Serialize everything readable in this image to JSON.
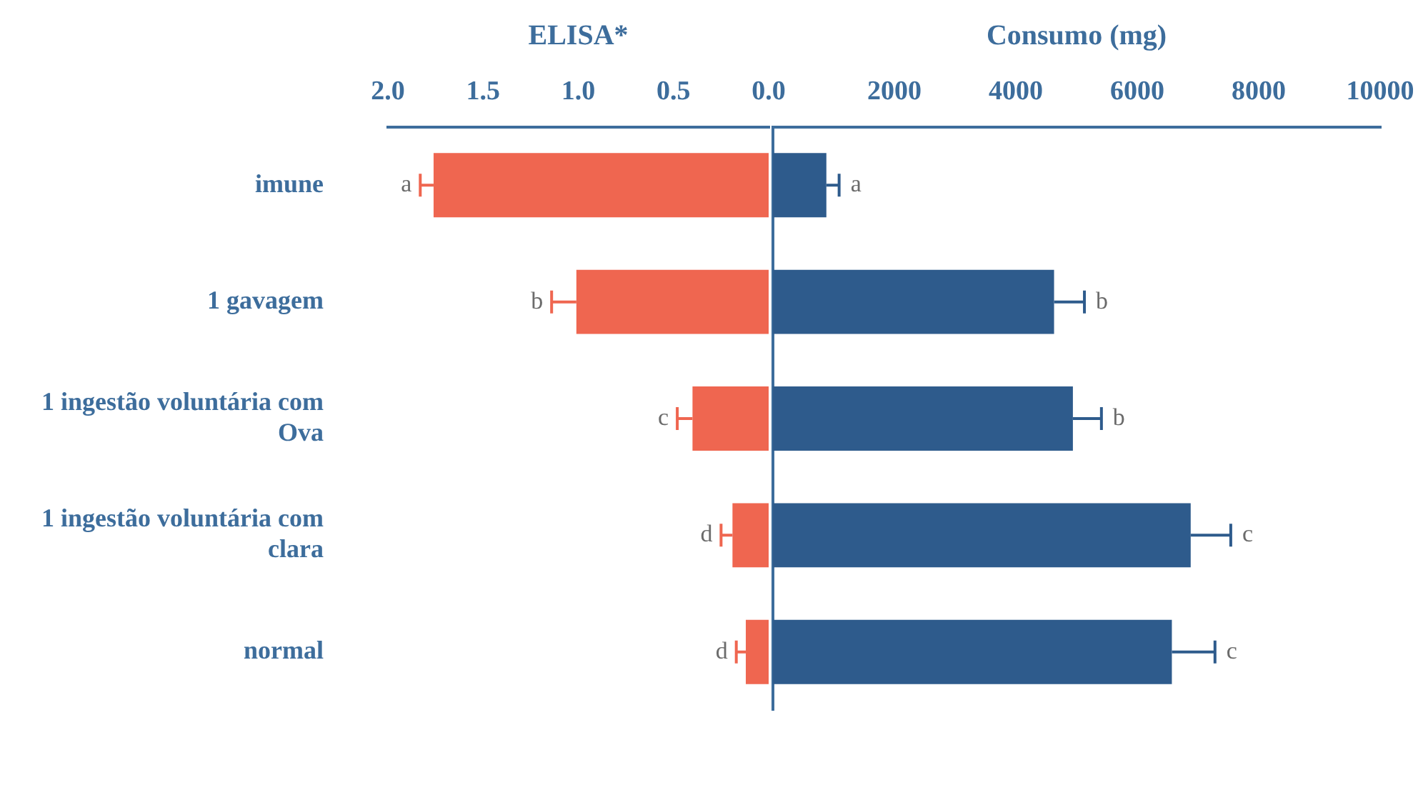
{
  "chart_data": [
    {
      "type": "bar",
      "orientation": "horizontal",
      "xlabel": "ELISA*",
      "categories": [
        "imune",
        "1 gavagem",
        "1 ingestão voluntária com Ova",
        "1 ingestão voluntária com clara",
        "normal"
      ],
      "values": [
        1.76,
        1.01,
        0.4,
        0.19,
        0.12
      ],
      "errors": [
        0.07,
        0.13,
        0.08,
        0.06,
        0.05
      ],
      "color": "#ef6650",
      "xlim": [
        2.0,
        0
      ],
      "xticks": [
        {
          "value": 2,
          "label": "2.0"
        },
        {
          "value": 1.5,
          "label": "1.5"
        },
        {
          "value": 1,
          "label": "1.0"
        },
        {
          "value": 0.5,
          "label": "0.5"
        },
        {
          "value": 0,
          "label": "0.0"
        }
      ],
      "annotations": [
        {
          "text": "a",
          "x": 1.83,
          "y": "imune"
        },
        {
          "text": "b",
          "x": 1.14,
          "y": "1 gavagem"
        },
        {
          "text": "c",
          "x": 0.48,
          "y": "1 ingestão voluntária com Ova"
        },
        {
          "text": "d",
          "x": 0.25,
          "y": "1 ingestão voluntária com clara"
        },
        {
          "text": "d",
          "x": 0.17,
          "y": "normal"
        }
      ],
      "grid": false,
      "legend": false
    },
    {
      "type": "bar",
      "orientation": "horizontal",
      "xlabel": "Consumo (mg)",
      "categories": [
        "imune",
        "1 gavagem",
        "1 ingestão voluntária com Ova",
        "1 ingestão voluntária com clara",
        "normal"
      ],
      "values": [
        880,
        4630,
        4940,
        6880,
        6570
      ],
      "errors": [
        210,
        500,
        470,
        660,
        710
      ],
      "color": "#2e5b8c",
      "xlim": [
        0,
        10000
      ],
      "xticks": [
        {
          "value": 0,
          "label": null
        },
        2000,
        4000,
        6000,
        8000,
        10000
      ],
      "annotations": [
        {
          "text": "a",
          "x": 1090,
          "y": "imune"
        },
        {
          "text": "b",
          "x": 5130,
          "y": "1 gavagem"
        },
        {
          "text": "b",
          "x": 5410,
          "y": "1 ingestão voluntária com Ova"
        },
        {
          "text": "c",
          "x": 7540,
          "y": "1 ingestão voluntária com clara"
        },
        {
          "text": "c",
          "x": 7280,
          "y": "normal"
        }
      ],
      "grid": false,
      "legend": false,
      "tick_labels": "x"
    }
  ]
}
